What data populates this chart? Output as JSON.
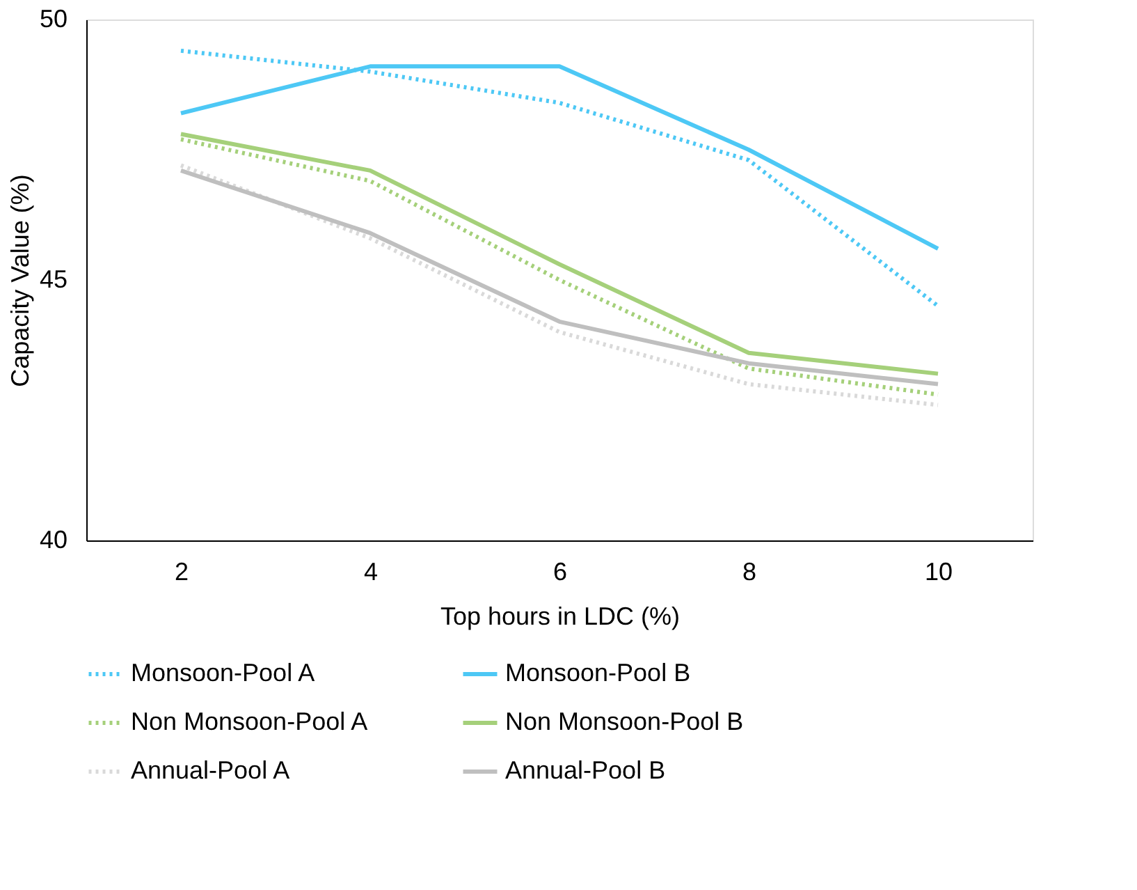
{
  "chart_data": {
    "type": "line",
    "xlabel": "Top hours in LDC (%)",
    "ylabel": "Capacity Value (%)",
    "categories": [
      "2",
      "4",
      "6",
      "8",
      "10"
    ],
    "ylim": [
      40,
      50
    ],
    "yticks": [
      40,
      45,
      50
    ],
    "grid": false,
    "legend": "bottom",
    "marker": "none",
    "series": [
      {
        "name": "Monsoon-Pool A",
        "color": "#4dc8f5",
        "line_style": "dotted",
        "values": [
          49.4,
          49.0,
          48.4,
          47.3,
          44.5
        ]
      },
      {
        "name": "Monsoon-Pool B",
        "color": "#4dc8f5",
        "line_style": "solid",
        "values": [
          48.2,
          49.1,
          49.1,
          47.5,
          45.6
        ]
      },
      {
        "name": "Non Monsoon-Pool A",
        "color": "#a5d07a",
        "line_style": "dotted",
        "values": [
          47.7,
          46.9,
          45.0,
          43.3,
          42.8
        ]
      },
      {
        "name": "Non Monsoon-Pool B",
        "color": "#a5d07a",
        "line_style": "solid",
        "values": [
          47.8,
          47.1,
          45.3,
          43.6,
          43.2
        ]
      },
      {
        "name": "Annual-Pool A",
        "color": "#d9d9d9",
        "line_style": "dotted",
        "values": [
          47.2,
          45.8,
          44.0,
          43.0,
          42.6
        ]
      },
      {
        "name": "Annual-Pool B",
        "color": "#bfbfbf",
        "line_style": "solid",
        "values": [
          47.1,
          45.9,
          44.2,
          43.4,
          43.0
        ]
      }
    ]
  }
}
